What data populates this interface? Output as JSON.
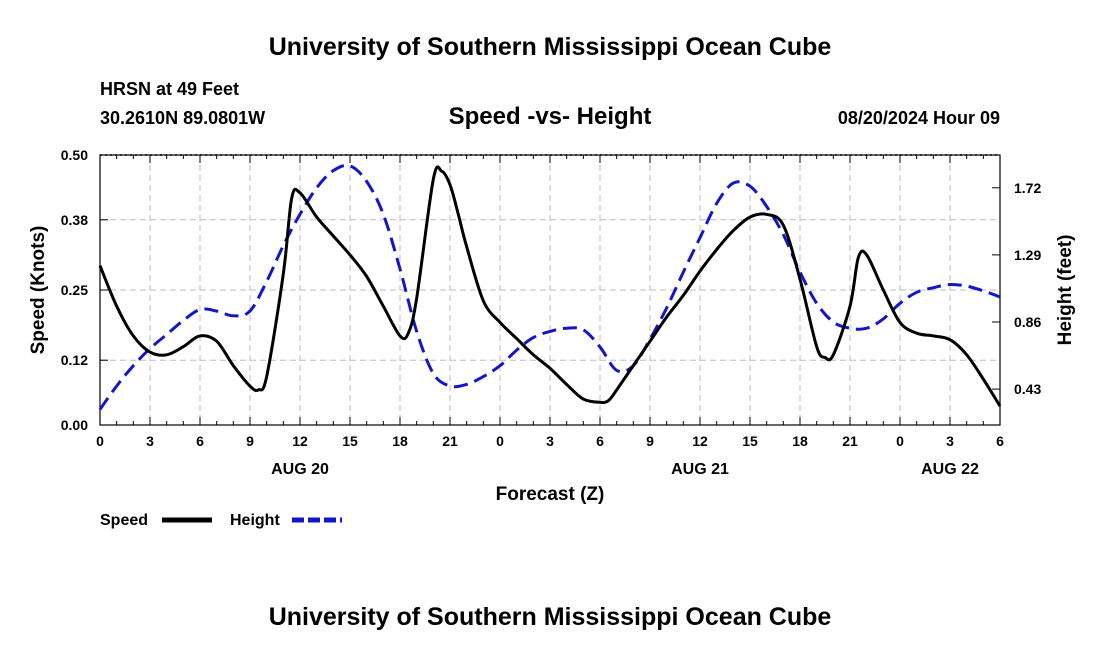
{
  "header": {
    "title": "University of Southern Mississippi Ocean Cube",
    "station": "HRSN at 49 Feet",
    "coords": "30.2610N  89.0801W",
    "datetime": "08/20/2024 Hour 09"
  },
  "footer": {
    "title": "University of Southern Mississippi Ocean Cube"
  },
  "legend": {
    "speed_label": "Speed",
    "height_label": "Height",
    "speed_color": "#000000",
    "height_color": "#1515c8"
  },
  "chart_data": {
    "type": "line",
    "title": "Speed -vs- Height",
    "xlabel": "Forecast (Z)",
    "ylabel": "Speed (Knots)",
    "ylabel_right": "Height (feet)",
    "grid": true,
    "legend_position": "bottom-left",
    "x_range": [
      0,
      54
    ],
    "x_tick_values": [
      0,
      3,
      6,
      9,
      12,
      15,
      18,
      21,
      24,
      27,
      30,
      33,
      36,
      39,
      42,
      45,
      48,
      51,
      54
    ],
    "x_tick_labels": [
      "0",
      "3",
      "6",
      "9",
      "12",
      "15",
      "18",
      "21",
      "0",
      "3",
      "6",
      "9",
      "12",
      "15",
      "18",
      "21",
      "0",
      "3",
      "6"
    ],
    "date_labels": [
      {
        "x": 12,
        "label": "AUG 20"
      },
      {
        "x": 36,
        "label": "AUG 21"
      },
      {
        "x": 51,
        "label": "AUG 22"
      }
    ],
    "ylim": [
      0,
      0.5
    ],
    "y_tick_values": [
      0,
      0.12,
      0.25,
      0.38,
      0.5
    ],
    "y_tick_labels": [
      "0.00",
      "0.12",
      "0.25",
      "0.38",
      "0.50"
    ],
    "ylim_right": [
      0.2,
      1.93
    ],
    "y_right_tick_values": [
      0.43,
      0.86,
      1.29,
      1.72
    ],
    "y_right_tick_labels": [
      "0.43",
      "0.86",
      "1.29",
      "1.72"
    ],
    "series": [
      {
        "name": "Speed",
        "axis": "left",
        "style": "solid",
        "x": [
          0,
          1,
          2,
          3,
          4,
          5,
          6,
          7,
          8,
          9,
          9.5,
          10,
          11,
          11.5,
          12,
          13,
          14,
          15,
          16,
          17,
          18,
          18.5,
          19,
          20,
          20.5,
          21,
          21.5,
          22,
          23,
          24,
          25,
          26,
          27,
          28,
          29,
          30,
          30.5,
          31,
          32,
          33,
          34,
          35,
          36,
          37,
          38,
          39,
          40,
          41,
          42,
          43,
          43.5,
          44,
          45,
          45.5,
          46,
          47,
          48,
          49,
          50,
          51,
          52,
          53,
          54
        ],
        "values": [
          0.295,
          0.22,
          0.165,
          0.135,
          0.13,
          0.145,
          0.165,
          0.155,
          0.11,
          0.072,
          0.065,
          0.09,
          0.28,
          0.42,
          0.43,
          0.385,
          0.35,
          0.315,
          0.275,
          0.22,
          0.165,
          0.17,
          0.235,
          0.455,
          0.47,
          0.445,
          0.39,
          0.33,
          0.23,
          0.19,
          0.16,
          0.13,
          0.105,
          0.075,
          0.048,
          0.042,
          0.045,
          0.065,
          0.11,
          0.155,
          0.2,
          0.24,
          0.285,
          0.325,
          0.36,
          0.385,
          0.39,
          0.37,
          0.27,
          0.145,
          0.125,
          0.13,
          0.22,
          0.31,
          0.315,
          0.25,
          0.19,
          0.17,
          0.165,
          0.158,
          0.13,
          0.085,
          0.035
        ]
      },
      {
        "name": "Height",
        "axis": "right",
        "style": "dashed",
        "x": [
          0,
          1,
          2,
          3,
          4,
          5,
          6,
          7,
          8,
          9,
          10,
          11,
          12,
          13,
          14,
          15,
          16,
          17,
          18,
          19,
          20,
          21,
          22,
          23,
          24,
          25,
          26,
          27,
          28,
          29,
          30,
          31,
          32,
          33,
          34,
          35,
          36,
          37,
          38,
          39,
          40,
          41,
          42,
          43,
          44,
          45,
          46,
          47,
          48,
          49,
          50,
          51,
          52,
          53,
          54
        ],
        "values": [
          0.3,
          0.45,
          0.58,
          0.69,
          0.78,
          0.87,
          0.94,
          0.93,
          0.9,
          0.93,
          1.12,
          1.35,
          1.55,
          1.72,
          1.83,
          1.86,
          1.76,
          1.55,
          1.2,
          0.8,
          0.53,
          0.45,
          0.46,
          0.51,
          0.58,
          0.68,
          0.76,
          0.8,
          0.82,
          0.81,
          0.7,
          0.55,
          0.58,
          0.75,
          0.95,
          1.18,
          1.4,
          1.62,
          1.75,
          1.73,
          1.6,
          1.42,
          1.18,
          0.98,
          0.86,
          0.82,
          0.82,
          0.88,
          0.98,
          1.05,
          1.08,
          1.1,
          1.09,
          1.06,
          1.02
        ]
      }
    ]
  }
}
